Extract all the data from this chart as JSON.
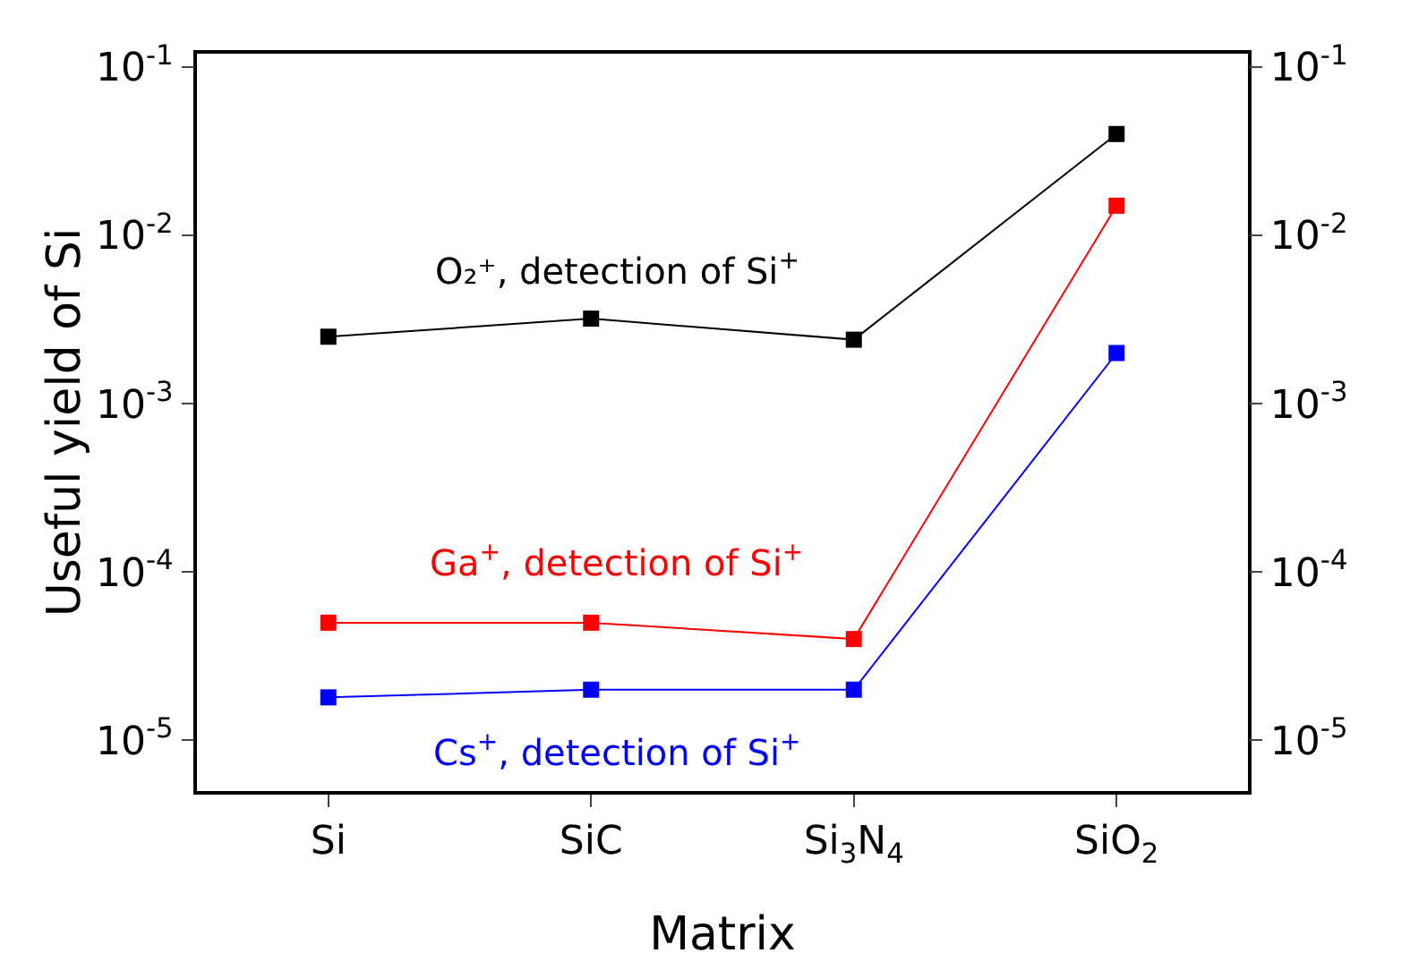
{
  "chart_data": {
    "type": "line",
    "xlabel": "Matrix",
    "ylabel": "Useful yield of Si",
    "categories": [
      "Si",
      "SiC",
      "Si$_{3}$N$_{4}$",
      "SiO$_{2}$"
    ],
    "series": [
      {
        "name": "O₂⁺, detection of Si$^{+}$",
        "color": "#000000",
        "values": [
          0.0025,
          0.0032,
          0.0024,
          0.04
        ]
      },
      {
        "name": "Ga$^{+}$, detection of Si$^{+}$",
        "color": "#ff0000",
        "values": [
          5e-05,
          5e-05,
          4e-05,
          0.015
        ]
      },
      {
        "name": "Cs$^{+}$, detection of Si$^{+}$",
        "color": "#0000ff",
        "values": [
          1.8e-05,
          2e-05,
          2e-05,
          0.002
        ]
      }
    ],
    "log": "y",
    "ylim": [
      5e-06,
      0.12
    ],
    "yticks": [
      {
        "value": 1e-05,
        "label": "10$^{-5}$"
      },
      {
        "value": 0.0001,
        "label": "10$^{-4}$"
      },
      {
        "value": 0.001,
        "label": "10$^{-3}$"
      },
      {
        "value": 0.01,
        "label": "10$^{-2}$"
      },
      {
        "value": 0.1,
        "label": "10$^{-1}$"
      }
    ],
    "grid": false,
    "legend": false,
    "marker": "square",
    "line_style": "solid"
  }
}
